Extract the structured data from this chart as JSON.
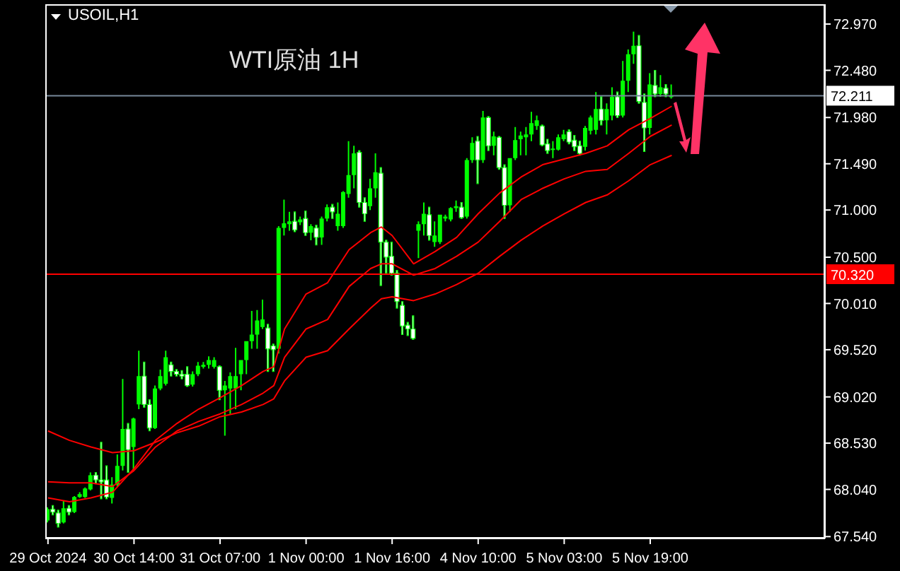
{
  "chart_data": {
    "type": "candlestick",
    "title": "WTI原油 1H",
    "subtitle": "USOIL,H1",
    "color": "#00ff00",
    "categories": [
      "29 Oct 2024",
      null,
      null,
      null,
      null,
      null,
      null,
      null,
      null,
      null,
      null,
      null,
      null,
      null,
      null,
      null,
      "30 Oct 14:00",
      null,
      null,
      null,
      null,
      null,
      null,
      null,
      null,
      null,
      null,
      null,
      null,
      null,
      null,
      null,
      "31 Oct 07:00",
      null,
      null,
      null,
      null,
      null,
      null,
      null,
      null,
      null,
      null,
      null,
      null,
      null,
      null,
      null,
      "1 Nov 00:00",
      null,
      null,
      null,
      null,
      null,
      null,
      null,
      null,
      null,
      null,
      null,
      null,
      null,
      null,
      null,
      "1 Nov 16:00",
      null,
      null,
      null,
      null,
      null,
      null,
      null,
      null,
      null,
      null,
      null,
      null,
      null,
      null,
      null,
      "4 Nov 10:00",
      null,
      null,
      null,
      null,
      null,
      null,
      null,
      null,
      null,
      null,
      null,
      null,
      null,
      null,
      null,
      "5 Nov 03:00",
      null,
      null,
      null,
      null,
      null,
      null,
      null,
      null,
      null,
      null,
      null,
      null,
      null,
      null,
      null,
      "5 Nov 19:00",
      null,
      null,
      null,
      null,
      null,
      null,
      null,
      null,
      null,
      null,
      null,
      null,
      null,
      null,
      null,
      null,
      null,
      null,
      null,
      null,
      null,
      null,
      null,
      null,
      null,
      null,
      null,
      null,
      null,
      null,
      null,
      null
    ],
    "ohlc": [
      [
        67.71,
        67.85,
        67.69,
        67.83
      ],
      [
        67.83,
        67.87,
        67.77,
        67.8
      ],
      [
        67.79,
        67.82,
        67.64,
        67.68
      ],
      [
        67.69,
        67.92,
        67.68,
        67.84
      ],
      [
        67.84,
        67.87,
        67.77,
        67.8
      ],
      [
        67.8,
        67.97,
        67.79,
        67.96
      ],
      [
        67.96,
        68.01,
        67.95,
        67.99
      ],
      [
        67.96,
        68.06,
        67.95,
        68.05
      ],
      [
        68.04,
        68.22,
        68.03,
        68.19
      ],
      [
        68.19,
        68.22,
        68.1,
        68.14
      ],
      [
        68.14,
        68.54,
        67.94,
        68.12
      ],
      [
        68.14,
        68.29,
        67.94,
        67.96
      ],
      [
        67.95,
        68.17,
        67.89,
        68.09
      ],
      [
        68.09,
        68.41,
        68.07,
        68.29
      ],
      [
        68.29,
        69.21,
        68.24,
        68.68
      ],
      [
        68.68,
        68.74,
        68.22,
        68.46
      ],
      [
        68.49,
        68.8,
        68.24,
        68.79
      ],
      [
        68.94,
        69.51,
        68.89,
        69.24
      ],
      [
        69.24,
        69.39,
        68.91,
        68.94
      ],
      [
        68.94,
        68.99,
        68.66,
        68.69
      ],
      [
        68.69,
        69.14,
        68.68,
        69.11
      ],
      [
        69.11,
        69.31,
        69.09,
        69.24
      ],
      [
        69.16,
        69.51,
        69.14,
        69.44
      ],
      [
        69.36,
        69.39,
        69.24,
        69.29
      ],
      [
        69.29,
        69.31,
        69.24,
        69.26
      ],
      [
        69.26,
        69.3,
        69.21,
        69.24
      ],
      [
        69.26,
        69.34,
        69.13,
        69.14
      ],
      [
        69.15,
        69.29,
        69.13,
        69.26
      ],
      [
        69.26,
        69.39,
        69.24,
        69.35
      ],
      [
        69.34,
        69.39,
        69.32,
        69.36
      ],
      [
        69.36,
        69.45,
        69.32,
        69.41
      ],
      [
        69.34,
        69.44,
        69.32,
        69.41
      ],
      [
        69.34,
        69.35,
        68.99,
        69.09
      ],
      [
        69.09,
        69.19,
        68.61,
        69.14
      ],
      [
        69.11,
        69.28,
        68.84,
        69.24
      ],
      [
        69.11,
        69.54,
        68.89,
        69.24
      ],
      [
        69.26,
        69.41,
        69.09,
        69.41
      ],
      [
        69.41,
        69.61,
        69.26,
        69.61
      ],
      [
        69.61,
        69.93,
        69.53,
        69.68
      ],
      [
        69.68,
        69.94,
        69.53,
        69.83
      ],
      [
        69.76,
        70.05,
        69.74,
        69.84
      ],
      [
        69.75,
        69.79,
        69.29,
        69.53
      ],
      [
        69.56,
        69.58,
        69.29,
        69.52
      ],
      [
        69.53,
        70.83,
        69.48,
        70.81
      ],
      [
        70.81,
        71.11,
        70.73,
        70.86
      ],
      [
        70.85,
        70.98,
        70.78,
        70.88
      ],
      [
        70.88,
        70.98,
        70.77,
        70.79
      ],
      [
        70.87,
        70.93,
        70.84,
        70.9
      ],
      [
        70.91,
        70.99,
        70.73,
        70.76
      ],
      [
        70.76,
        70.85,
        70.68,
        70.83
      ],
      [
        70.81,
        70.84,
        70.63,
        70.71
      ],
      [
        70.71,
        70.93,
        70.63,
        70.91
      ],
      [
        70.91,
        71.06,
        70.88,
        71.03
      ],
      [
        71.03,
        71.06,
        70.91,
        70.98
      ],
      [
        70.83,
        71.08,
        70.78,
        70.96
      ],
      [
        70.83,
        71.2,
        70.81,
        71.19
      ],
      [
        71.17,
        71.73,
        71.13,
        71.37
      ],
      [
        71.37,
        71.68,
        71.23,
        71.6
      ],
      [
        71.61,
        71.63,
        71.03,
        71.08
      ],
      [
        71.08,
        71.13,
        70.88,
        70.96
      ],
      [
        71.04,
        71.33,
        71.0,
        71.23
      ],
      [
        71.23,
        71.6,
        71.13,
        71.4
      ],
      [
        71.39,
        71.45,
        70.2,
        70.66
      ],
      [
        70.66,
        70.68,
        70.33,
        70.5
      ],
      [
        70.51,
        70.66,
        70.31,
        70.33
      ],
      [
        70.33,
        70.36,
        69.96,
        70.03
      ],
      [
        69.99,
        70.03,
        69.68,
        69.77
      ],
      [
        69.78,
        69.81,
        69.67,
        69.74
      ],
      [
        69.74,
        69.88,
        69.63,
        69.64
      ],
      [
        70.78,
        70.88,
        70.49,
        70.85
      ],
      [
        70.85,
        71.08,
        70.73,
        70.96
      ],
      [
        70.95,
        71.03,
        70.68,
        70.73
      ],
      [
        70.66,
        70.88,
        70.61,
        70.73
      ],
      [
        70.66,
        70.95,
        70.64,
        70.95
      ],
      [
        70.91,
        70.95,
        70.88,
        70.93
      ],
      [
        70.9,
        71.03,
        70.88,
        71.02
      ],
      [
        71.02,
        71.1,
        70.98,
        71.04
      ],
      [
        71.03,
        71.08,
        70.91,
        70.92
      ],
      [
        70.93,
        71.55,
        70.91,
        71.53
      ],
      [
        71.53,
        71.77,
        71.5,
        71.71
      ],
      [
        71.73,
        71.78,
        71.28,
        71.53
      ],
      [
        71.53,
        72.05,
        71.5,
        71.98
      ],
      [
        71.98,
        71.99,
        71.63,
        71.68
      ],
      [
        71.68,
        71.83,
        71.58,
        71.78
      ],
      [
        71.77,
        71.78,
        71.43,
        71.45
      ],
      [
        71.45,
        71.48,
        70.91,
        71.05
      ],
      [
        71.05,
        71.55,
        70.98,
        71.55
      ],
      [
        71.55,
        71.88,
        71.53,
        71.74
      ],
      [
        71.75,
        71.83,
        71.58,
        71.79
      ],
      [
        71.77,
        71.88,
        71.58,
        71.8
      ],
      [
        71.8,
        72.04,
        71.73,
        71.92
      ],
      [
        71.89,
        72.0,
        71.85,
        71.95
      ],
      [
        71.89,
        71.9,
        71.68,
        71.69
      ],
      [
        71.7,
        71.75,
        71.6,
        71.63
      ],
      [
        71.64,
        71.73,
        71.55,
        71.65
      ],
      [
        71.64,
        71.8,
        71.63,
        71.77
      ],
      [
        71.75,
        71.85,
        71.73,
        71.8
      ],
      [
        71.83,
        71.85,
        71.7,
        71.72
      ],
      [
        71.74,
        71.79,
        71.63,
        71.67
      ],
      [
        71.68,
        71.73,
        71.58,
        71.6
      ],
      [
        71.67,
        71.89,
        71.63,
        71.87
      ],
      [
        71.84,
        72.0,
        71.8,
        71.98
      ],
      [
        71.85,
        72.25,
        71.8,
        72.07
      ],
      [
        72.07,
        72.2,
        71.9,
        71.95
      ],
      [
        71.95,
        72.13,
        71.8,
        72.07
      ],
      [
        72.0,
        72.3,
        71.95,
        72.2
      ],
      [
        72.2,
        72.25,
        71.98,
        72.0
      ],
      [
        72.0,
        72.58,
        71.98,
        72.37
      ],
      [
        72.37,
        72.7,
        72.25,
        72.65
      ],
      [
        72.65,
        72.89,
        72.55,
        72.74
      ],
      [
        72.74,
        72.85,
        72.13,
        72.15
      ],
      [
        72.14,
        72.23,
        71.62,
        71.87
      ],
      [
        71.87,
        72.45,
        71.8,
        72.33
      ],
      [
        72.32,
        72.48,
        72.2,
        72.23
      ],
      [
        72.23,
        72.43,
        72.2,
        72.3
      ],
      [
        72.29,
        72.33,
        72.2,
        72.23
      ],
      [
        72.2,
        72.33,
        72.18,
        72.21
      ],
      null,
      null,
      null,
      null,
      null,
      null,
      null,
      null,
      null,
      null,
      null,
      null,
      null,
      null,
      null,
      null,
      null,
      null,
      null,
      null,
      null,
      null,
      null,
      null,
      null,
      null,
      null,
      null
    ],
    "series": [
      {
        "type": "line",
        "color": "#ff0000",
        "values": [
          67.95,
          null,
          null,
          null,
          67.91,
          null,
          null,
          null,
          67.95,
          null,
          null,
          null,
          68.01,
          null,
          null,
          null,
          68.26,
          null,
          null,
          null,
          68.56,
          null,
          null,
          null,
          68.74,
          null,
          null,
          null,
          68.89,
          null,
          null,
          null,
          69.01,
          null,
          null,
          null,
          69.14,
          null,
          null,
          null,
          69.29,
          null,
          69.34,
          null,
          69.74,
          null,
          null,
          null,
          70.11,
          null,
          null,
          null,
          70.23,
          null,
          null,
          null,
          70.58,
          null,
          null,
          null,
          70.76,
          null,
          70.82,
          null,
          70.73,
          null,
          null,
          null,
          70.43,
          null,
          null,
          null,
          70.56,
          null,
          null,
          null,
          70.71,
          null,
          null,
          null,
          70.96,
          null,
          null,
          null,
          71.18,
          null,
          null,
          null,
          71.35,
          null,
          null,
          null,
          71.48,
          null,
          null,
          null,
          71.54,
          null,
          null,
          null,
          71.6,
          null,
          null,
          null,
          71.68,
          null,
          null,
          null,
          71.85,
          null,
          null,
          null,
          71.97,
          null,
          null,
          null,
          72.1,
          null,
          null,
          null,
          null,
          null,
          null,
          null,
          null,
          null,
          null,
          null,
          null,
          null,
          null,
          null,
          null,
          null,
          null,
          null,
          null,
          null,
          null,
          null,
          null,
          null,
          null,
          null,
          null
        ]
      },
      {
        "type": "line",
        "color": "#ff0000",
        "values": [
          68.12,
          null,
          null,
          null,
          68.11,
          null,
          null,
          null,
          68.11,
          null,
          null,
          null,
          68.07,
          null,
          null,
          null,
          68.24,
          null,
          null,
          null,
          68.49,
          null,
          null,
          null,
          68.66,
          null,
          null,
          null,
          68.76,
          null,
          null,
          null,
          68.84,
          null,
          null,
          null,
          68.94,
          null,
          null,
          null,
          69.06,
          null,
          69.14,
          null,
          69.44,
          null,
          null,
          null,
          69.74,
          null,
          null,
          null,
          69.84,
          null,
          null,
          null,
          70.19,
          null,
          null,
          null,
          70.38,
          null,
          70.43,
          null,
          70.43,
          null,
          null,
          null,
          70.31,
          null,
          null,
          null,
          70.38,
          null,
          null,
          null,
          70.51,
          null,
          null,
          null,
          70.66,
          null,
          null,
          null,
          70.88,
          null,
          null,
          null,
          71.11,
          null,
          null,
          null,
          71.23,
          null,
          null,
          null,
          71.33,
          null,
          null,
          null,
          71.41,
          null,
          null,
          null,
          71.43,
          null,
          null,
          null,
          71.6,
          null,
          null,
          null,
          71.78,
          null,
          null,
          null,
          71.9,
          null,
          null,
          null,
          null,
          null,
          null,
          null,
          null,
          null,
          null,
          null,
          null,
          null,
          null,
          null,
          null,
          null,
          null,
          null,
          null,
          null,
          null,
          null,
          null,
          null,
          null,
          null,
          null
        ]
      },
      {
        "type": "line",
        "color": "#ff0000",
        "values": [
          68.66,
          null,
          null,
          null,
          68.56,
          null,
          null,
          null,
          68.49,
          null,
          null,
          null,
          68.43,
          null,
          null,
          null,
          68.45,
          null,
          null,
          null,
          68.54,
          null,
          null,
          null,
          68.64,
          null,
          null,
          null,
          68.71,
          null,
          null,
          null,
          68.81,
          null,
          null,
          null,
          68.86,
          null,
          null,
          null,
          68.94,
          null,
          69.0,
          null,
          69.19,
          null,
          null,
          null,
          69.44,
          null,
          null,
          null,
          69.51,
          null,
          null,
          null,
          69.74,
          null,
          null,
          null,
          69.96,
          null,
          70.06,
          null,
          70.08,
          null,
          null,
          null,
          70.04,
          null,
          null,
          null,
          70.11,
          null,
          null,
          null,
          70.21,
          null,
          null,
          null,
          70.33,
          null,
          null,
          null,
          70.51,
          null,
          null,
          null,
          70.68,
          null,
          null,
          null,
          70.83,
          null,
          null,
          null,
          70.96,
          null,
          null,
          null,
          71.08,
          null,
          null,
          null,
          71.16,
          null,
          null,
          null,
          71.31,
          null,
          null,
          null,
          71.48,
          null,
          null,
          null,
          71.58,
          null,
          null,
          null,
          null,
          null,
          null,
          null,
          null,
          null,
          null,
          null,
          null,
          null,
          null,
          null,
          null,
          null,
          null,
          null,
          null,
          null,
          null,
          null,
          null,
          null,
          null,
          null,
          null
        ]
      }
    ],
    "ylim": [
      67.52,
      73.18
    ],
    "yticks": [
      {
        "value": 67.54,
        "label": "67.540"
      },
      {
        "value": 68.04,
        "label": "68.040"
      },
      {
        "value": 68.53,
        "label": "68.530"
      },
      {
        "value": 69.02,
        "label": "69.020"
      },
      {
        "value": 69.52,
        "label": "69.520"
      },
      {
        "value": 70.01,
        "label": "70.010"
      },
      {
        "value": 70.5,
        "label": "70.500"
      },
      {
        "value": 71.0,
        "label": "71.000"
      },
      {
        "value": 71.49,
        "label": "71.490"
      },
      {
        "value": 71.98,
        "label": "71.980"
      },
      {
        "value": 72.48,
        "label": "72.480"
      },
      {
        "value": 72.97,
        "label": "72.970"
      }
    ],
    "ref_lines": [
      {
        "axis": "y",
        "value": 72.211,
        "label": "72.211",
        "color": "#778899"
      },
      {
        "axis": "y",
        "value": 70.32,
        "label": "70.320",
        "color": "#ff0000"
      }
    ]
  }
}
